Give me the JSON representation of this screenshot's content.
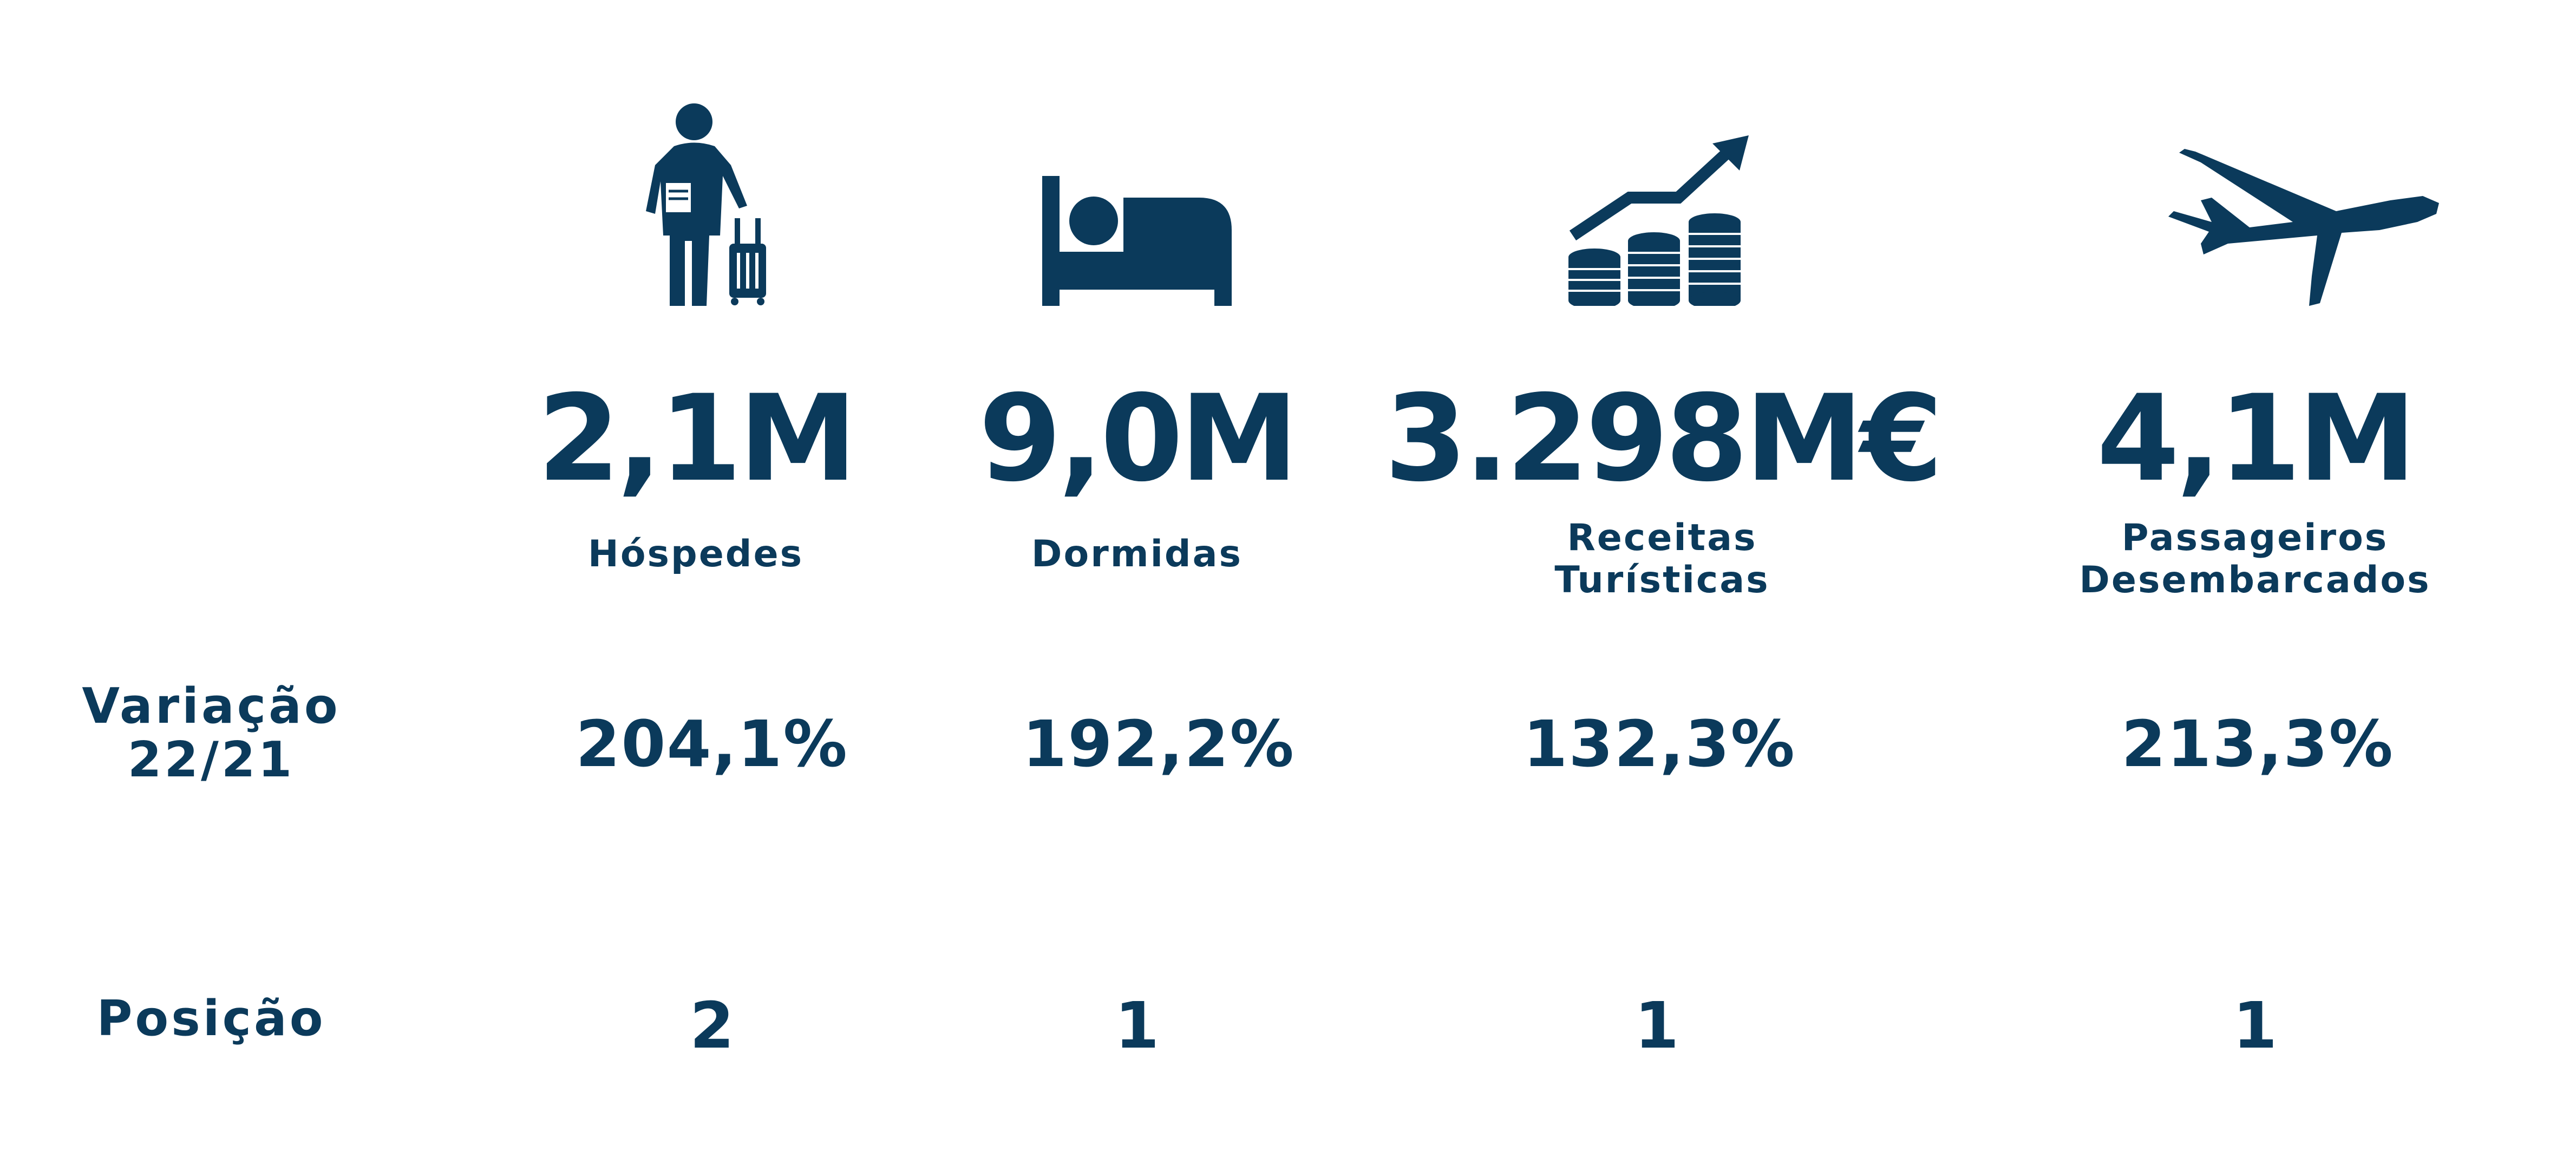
{
  "colors": {
    "primary": "#0b3a5b",
    "background": "#ffffff"
  },
  "row_labels": {
    "variacao_line1": "Variação",
    "variacao_line2": "22/21",
    "posicao": "Posição"
  },
  "metrics": [
    {
      "icon": "traveler-icon",
      "value": "2,1M",
      "label_line1": "Hóspedes",
      "label_line2": "",
      "variation": "204,1%",
      "position": "2"
    },
    {
      "icon": "bed-icon",
      "value": "9,0M",
      "label_line1": "Dormidas",
      "label_line2": "",
      "variation": "192,2%",
      "position": "1"
    },
    {
      "icon": "coins-growth-icon",
      "value": "3.298M€",
      "label_line1": "Receitas",
      "label_line2": "Turísticas",
      "variation": "132,3%",
      "position": "1"
    },
    {
      "icon": "airplane-icon",
      "value": "4,1M",
      "label_line1": "Passageiros",
      "label_line2": "Desembarcados",
      "variation": "213,3%",
      "position": "1"
    }
  ]
}
